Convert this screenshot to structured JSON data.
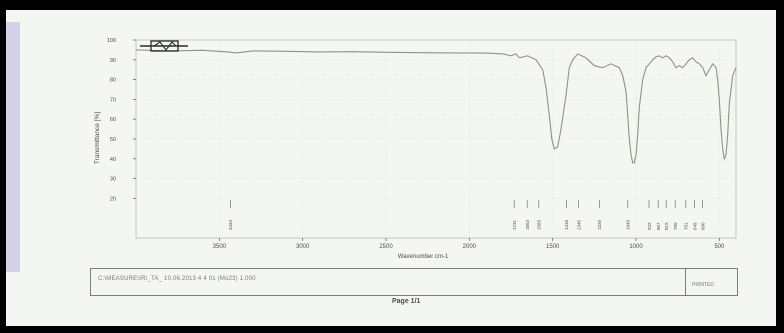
{
  "chart_data": {
    "type": "line",
    "title": "",
    "xlabel": "Wavenumber cm-1",
    "ylabel": "Transmittance [%]",
    "xlim": [
      4000,
      400
    ],
    "ylim": [
      0,
      100
    ],
    "x_ticks": [
      "3500",
      "3000",
      "2500",
      "2000",
      "1500",
      "1000",
      "500"
    ],
    "x_tick_values": [
      3500,
      3000,
      2500,
      2000,
      1500,
      1000,
      500
    ],
    "y_ticks": [
      "100",
      "90",
      "80",
      "70",
      "60",
      "50",
      "40",
      "30",
      "20"
    ],
    "y_tick_values": [
      100,
      90,
      80,
      70,
      60,
      50,
      40,
      30,
      20
    ],
    "grid": true,
    "series": [
      {
        "x": [
          4000,
          3800,
          3600,
          3450,
          3400,
          3350,
          3300,
          3100,
          2900,
          2700,
          2500,
          2300,
          2100,
          1900,
          1800,
          1750,
          1720,
          1700,
          1650,
          1600,
          1560,
          1540,
          1520,
          1505,
          1490,
          1470,
          1450,
          1420,
          1400,
          1380,
          1350,
          1300,
          1250,
          1200,
          1150,
          1100,
          1080,
          1060,
          1050,
          1040,
          1030,
          1020,
          1010,
          1000,
          990,
          980,
          960,
          940,
          920,
          900,
          880,
          860,
          840,
          820,
          800,
          780,
          760,
          740,
          720,
          700,
          680,
          660,
          640,
          620,
          600,
          580,
          560,
          540,
          520,
          510,
          500,
          490,
          480,
          470,
          460,
          450,
          440,
          420,
          400
        ],
        "y": [
          95,
          94.5,
          94.8,
          94,
          93.5,
          94,
          94.5,
          94.3,
          94,
          94.1,
          93.8,
          93.6,
          93.5,
          93.4,
          93,
          92,
          93,
          91,
          92,
          90,
          85,
          76,
          62,
          50,
          45,
          46,
          55,
          72,
          86,
          90,
          93,
          91,
          87,
          86,
          88,
          86,
          82,
          74,
          62,
          50,
          42,
          38,
          38,
          42,
          52,
          66,
          80,
          86,
          88,
          90,
          91.5,
          92,
          91,
          92,
          91,
          89,
          86,
          87,
          86,
          88,
          90,
          91,
          89,
          88,
          86,
          82,
          85,
          88,
          86,
          80,
          70,
          55,
          45,
          40,
          42,
          52,
          68,
          82,
          86
        ]
      }
    ],
    "peak_labels": [
      {
        "x": 3434,
        "label": "3434"
      },
      {
        "x": 1731,
        "label": "1731"
      },
      {
        "x": 1653,
        "label": "1653"
      },
      {
        "x": 1583,
        "label": "1583"
      },
      {
        "x": 1418,
        "label": "1418"
      },
      {
        "x": 1345,
        "label": "1345"
      },
      {
        "x": 1220,
        "label": "1220"
      },
      {
        "x": 1049,
        "label": "1049"
      },
      {
        "x": 922,
        "label": "922"
      },
      {
        "x": 867,
        "label": "867"
      },
      {
        "x": 819,
        "label": "819"
      },
      {
        "x": 765,
        "label": "765"
      },
      {
        "x": 701,
        "label": "701"
      },
      {
        "x": 649,
        "label": "649"
      },
      {
        "x": 600,
        "label": "600"
      }
    ],
    "legend": "top-left",
    "colors": {
      "line": "#8c9488",
      "axis": "#5a5d5a",
      "grid": "#d4d6d2",
      "text": "#4a4d4a"
    }
  },
  "footer": {
    "info_text": "C:\\MEASURE\\IR\\_TA_ 10.06.2013 4     4 01 (Mo23)     1.000",
    "right_text": "PRINTED",
    "page_label": "Page 1/1"
  }
}
